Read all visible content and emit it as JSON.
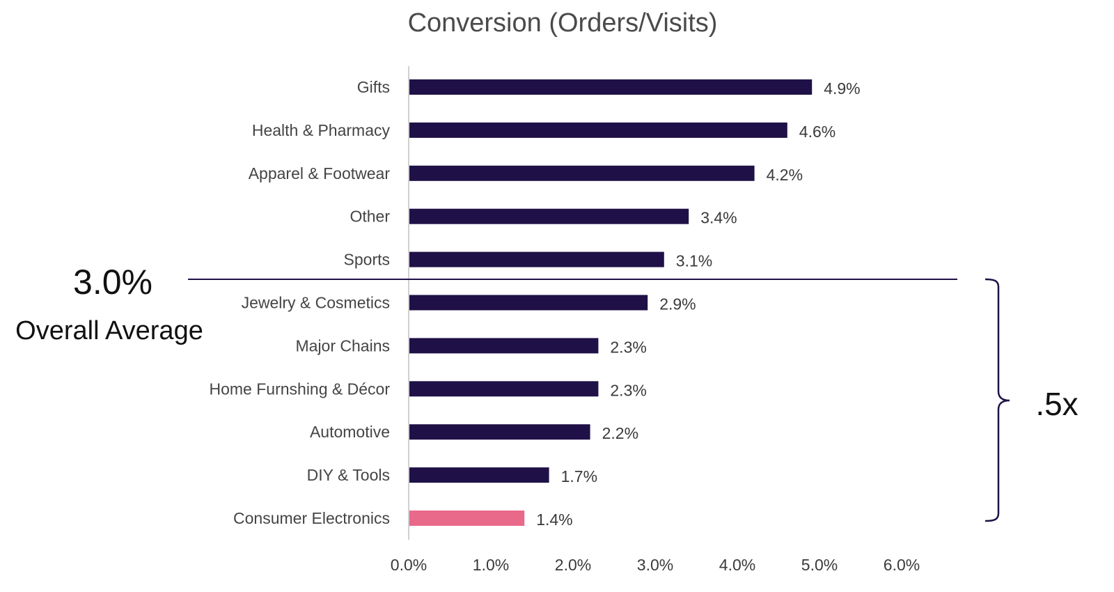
{
  "chart_data": {
    "type": "bar",
    "orientation": "horizontal",
    "title": "Conversion (Orders/Visits)",
    "categories": [
      "Gifts",
      "Health & Pharmacy",
      "Apparel & Footwear",
      "Other",
      "Sports",
      "Jewelry & Cosmetics",
      "Major Chains",
      "Home Furnshing & Décor",
      "Automotive",
      "DIY & Tools",
      "Consumer Electronics"
    ],
    "values": [
      4.9,
      4.6,
      4.2,
      3.4,
      3.1,
      2.9,
      2.3,
      2.3,
      2.2,
      1.7,
      1.4
    ],
    "value_labels": [
      "4.9%",
      "4.6%",
      "4.2%",
      "3.4%",
      "3.1%",
      "2.9%",
      "2.3%",
      "2.3%",
      "2.2%",
      "1.7%",
      "1.4%"
    ],
    "bar_colors": [
      "#1f1147",
      "#1f1147",
      "#1f1147",
      "#1f1147",
      "#1f1147",
      "#1f1147",
      "#1f1147",
      "#1f1147",
      "#1f1147",
      "#1f1147",
      "#e8698a"
    ],
    "xlim": [
      0,
      6
    ],
    "x_ticks": [
      0,
      1,
      2,
      3,
      4,
      5,
      6
    ],
    "x_tick_labels": [
      "0.0%",
      "1.0%",
      "2.0%",
      "3.0%",
      "4.0%",
      "5.0%",
      "6.0%"
    ],
    "grid": false,
    "legend": "none",
    "annotations": {
      "average_value": 3.0,
      "average_text": "3.0%",
      "average_label": "Overall Average",
      "bracket_label": ".5x",
      "bracket_categories": [
        "Jewelry & Cosmetics",
        "Consumer Electronics"
      ]
    }
  },
  "colors": {
    "primary_bar": "#1f1147",
    "highlight_bar": "#e8698a",
    "reference_line": "#1f1147",
    "axis": "#d0d0d0"
  }
}
